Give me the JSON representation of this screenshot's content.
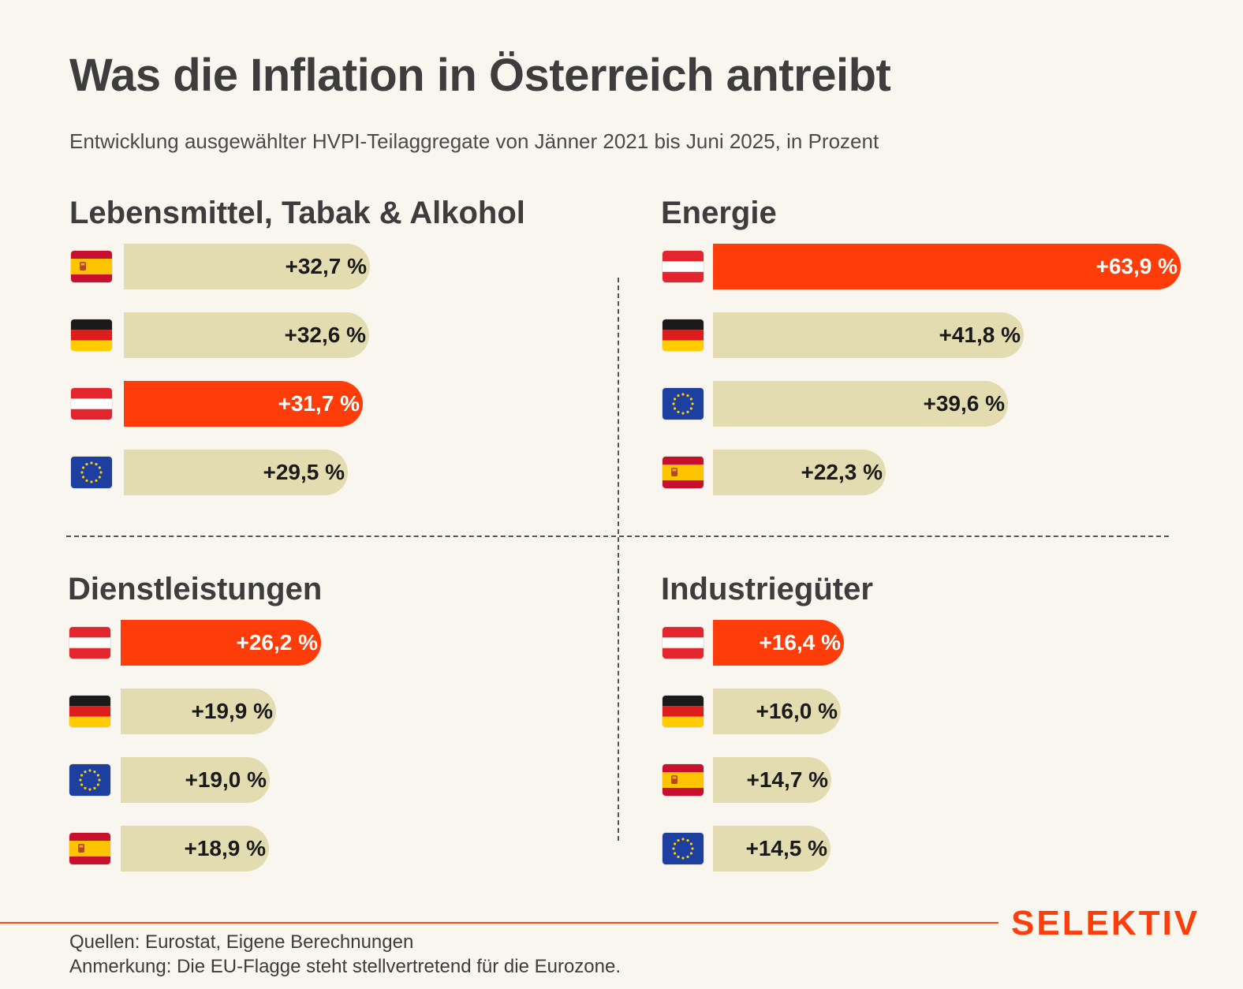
{
  "title": "Was die Inflation in Österreich antreibt",
  "subtitle": "Entwicklung ausgewählter HVPI-Teilaggregate von Jänner 2021 bis Juni 2025, in Prozent",
  "colors": {
    "background": "#f8f6ee",
    "highlight": "#ff3d0a",
    "bar": "#e2dcb0",
    "logo": "#ff3d0a"
  },
  "chart_data": [
    {
      "type": "bar",
      "orientation": "horizontal",
      "title": "Lebensmittel, Tabak & Alkohol",
      "rows": [
        {
          "flag": "spain-flag-icon",
          "value": 32.7,
          "label": "+32,7 %",
          "highlight": false
        },
        {
          "flag": "germany-flag-icon",
          "value": 32.6,
          "label": "+32,6 %",
          "highlight": false
        },
        {
          "flag": "austria-flag-icon",
          "value": 31.7,
          "label": "+31,7 %",
          "highlight": true
        },
        {
          "flag": "eu-flag-icon",
          "value": 29.5,
          "label": "+29,5 %",
          "highlight": false
        }
      ]
    },
    {
      "type": "bar",
      "orientation": "horizontal",
      "title": "Energie",
      "rows": [
        {
          "flag": "austria-flag-icon",
          "value": 63.9,
          "label": "+63,9 %",
          "highlight": true
        },
        {
          "flag": "germany-flag-icon",
          "value": 41.8,
          "label": "+41,8 %",
          "highlight": false
        },
        {
          "flag": "eu-flag-icon",
          "value": 39.6,
          "label": "+39,6 %",
          "highlight": false
        },
        {
          "flag": "spain-flag-icon",
          "value": 22.3,
          "label": "+22,3 %",
          "highlight": false
        }
      ]
    },
    {
      "type": "bar",
      "orientation": "horizontal",
      "title": "Dienstleistungen",
      "rows": [
        {
          "flag": "austria-flag-icon",
          "value": 26.2,
          "label": "+26,2 %",
          "highlight": true
        },
        {
          "flag": "germany-flag-icon",
          "value": 19.9,
          "label": "+19,9 %",
          "highlight": false
        },
        {
          "flag": "eu-flag-icon",
          "value": 19.0,
          "label": "+19,0 %",
          "highlight": false
        },
        {
          "flag": "spain-flag-icon",
          "value": 18.9,
          "label": "+18,9 %",
          "highlight": false
        }
      ]
    },
    {
      "type": "bar",
      "orientation": "horizontal",
      "title": "Industriegüter",
      "rows": [
        {
          "flag": "austria-flag-icon",
          "value": 16.4,
          "label": "+16,4 %",
          "highlight": true
        },
        {
          "flag": "germany-flag-icon",
          "value": 16.0,
          "label": "+16,0 %",
          "highlight": false
        },
        {
          "flag": "spain-flag-icon",
          "value": 14.7,
          "label": "+14,7 %",
          "highlight": false
        },
        {
          "flag": "eu-flag-icon",
          "value": 14.5,
          "label": "+14,5 %",
          "highlight": false
        }
      ]
    }
  ],
  "footer": {
    "logo": "SELEKTIV",
    "sources": "Quellen: Eurostat, Eigene Berechnungen",
    "note": "Anmerkung: Die EU-Flagge steht stellvertretend für die Eurozone."
  }
}
